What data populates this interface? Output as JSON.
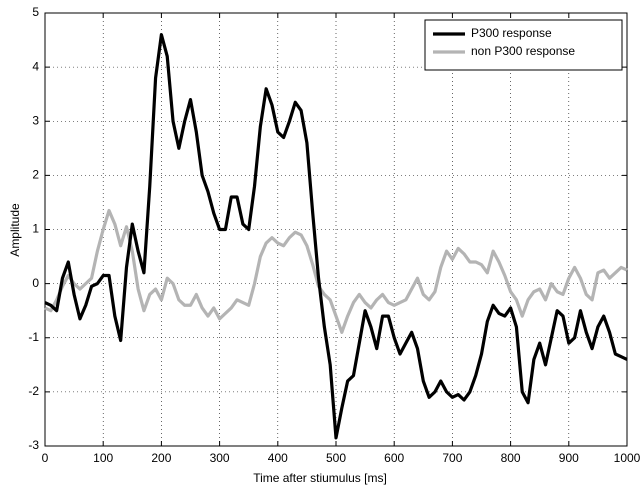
{
  "chart_data": {
    "type": "line",
    "xlabel": "Time after stiumulus [ms]",
    "ylabel": "Amplitude",
    "xlim": [
      0,
      1000
    ],
    "ylim": [
      -3,
      5
    ],
    "xticks": [
      0,
      100,
      200,
      300,
      400,
      500,
      600,
      700,
      800,
      900,
      1000
    ],
    "yticks": [
      -3,
      -2,
      -1,
      0,
      1,
      2,
      3,
      4,
      5
    ],
    "grid": true,
    "legend": "upper right",
    "x": [
      0,
      10,
      20,
      30,
      40,
      50,
      60,
      70,
      80,
      90,
      100,
      110,
      120,
      130,
      140,
      150,
      160,
      170,
      180,
      190,
      200,
      210,
      220,
      230,
      240,
      250,
      260,
      270,
      280,
      290,
      300,
      310,
      320,
      330,
      340,
      350,
      360,
      370,
      380,
      390,
      400,
      410,
      420,
      430,
      440,
      450,
      460,
      470,
      480,
      490,
      500,
      510,
      520,
      530,
      540,
      550,
      560,
      570,
      580,
      590,
      600,
      610,
      620,
      630,
      640,
      650,
      660,
      670,
      680,
      690,
      700,
      710,
      720,
      730,
      740,
      750,
      760,
      770,
      780,
      790,
      800,
      810,
      820,
      830,
      840,
      850,
      860,
      870,
      880,
      890,
      900,
      910,
      920,
      930,
      940,
      950,
      960,
      970,
      980,
      990,
      1000
    ],
    "series": [
      {
        "name": "P300 response",
        "color": "#000000",
        "values": [
          -0.35,
          -0.4,
          -0.5,
          0.1,
          0.4,
          -0.2,
          -0.65,
          -0.4,
          -0.05,
          0.0,
          0.15,
          0.15,
          -0.6,
          -1.05,
          0.3,
          1.1,
          0.6,
          0.2,
          1.8,
          3.8,
          4.6,
          4.2,
          3.0,
          2.5,
          3.0,
          3.4,
          2.8,
          2.0,
          1.7,
          1.3,
          1.0,
          1.0,
          1.6,
          1.6,
          1.1,
          1.0,
          1.8,
          2.9,
          3.6,
          3.3,
          2.8,
          2.7,
          3.0,
          3.35,
          3.2,
          2.6,
          1.3,
          0.1,
          -0.8,
          -1.5,
          -2.85,
          -2.3,
          -1.8,
          -1.7,
          -1.1,
          -0.5,
          -0.8,
          -1.2,
          -0.6,
          -0.6,
          -1.0,
          -1.3,
          -1.1,
          -0.9,
          -1.2,
          -1.8,
          -2.1,
          -2.0,
          -1.8,
          -2.0,
          -2.1,
          -2.05,
          -2.15,
          -2.0,
          -1.7,
          -1.3,
          -0.7,
          -0.4,
          -0.55,
          -0.6,
          -0.45,
          -0.8,
          -2.0,
          -2.2,
          -1.4,
          -1.1,
          -1.5,
          -1.0,
          -0.5,
          -0.6,
          -1.1,
          -1.0,
          -0.5,
          -0.9,
          -1.2,
          -0.8,
          -0.6,
          -0.9,
          -1.3,
          -1.35,
          -1.4
        ]
      },
      {
        "name": "non P300 response",
        "color": "#b4b4b4",
        "values": [
          -0.45,
          -0.5,
          -0.3,
          -0.05,
          0.15,
          0.0,
          -0.1,
          0.0,
          0.1,
          0.6,
          1.0,
          1.35,
          1.1,
          0.7,
          1.05,
          0.6,
          -0.1,
          -0.5,
          -0.2,
          -0.1,
          -0.3,
          0.1,
          0.0,
          -0.3,
          -0.4,
          -0.4,
          -0.2,
          -0.45,
          -0.6,
          -0.45,
          -0.65,
          -0.55,
          -0.45,
          -0.3,
          -0.35,
          -0.4,
          0.0,
          0.5,
          0.75,
          0.85,
          0.75,
          0.7,
          0.85,
          0.95,
          0.9,
          0.7,
          0.35,
          -0.05,
          -0.2,
          -0.3,
          -0.6,
          -0.9,
          -0.6,
          -0.35,
          -0.2,
          -0.35,
          -0.45,
          -0.3,
          -0.2,
          -0.35,
          -0.4,
          -0.35,
          -0.3,
          -0.1,
          0.1,
          -0.2,
          -0.3,
          -0.15,
          0.3,
          0.6,
          0.45,
          0.65,
          0.55,
          0.4,
          0.4,
          0.35,
          0.2,
          0.6,
          0.4,
          0.15,
          -0.15,
          -0.3,
          -0.6,
          -0.3,
          -0.15,
          -0.1,
          -0.3,
          0.0,
          -0.15,
          -0.2,
          0.1,
          0.3,
          0.1,
          -0.2,
          -0.3,
          0.2,
          0.25,
          0.1,
          0.2,
          0.3,
          0.25
        ]
      }
    ]
  }
}
